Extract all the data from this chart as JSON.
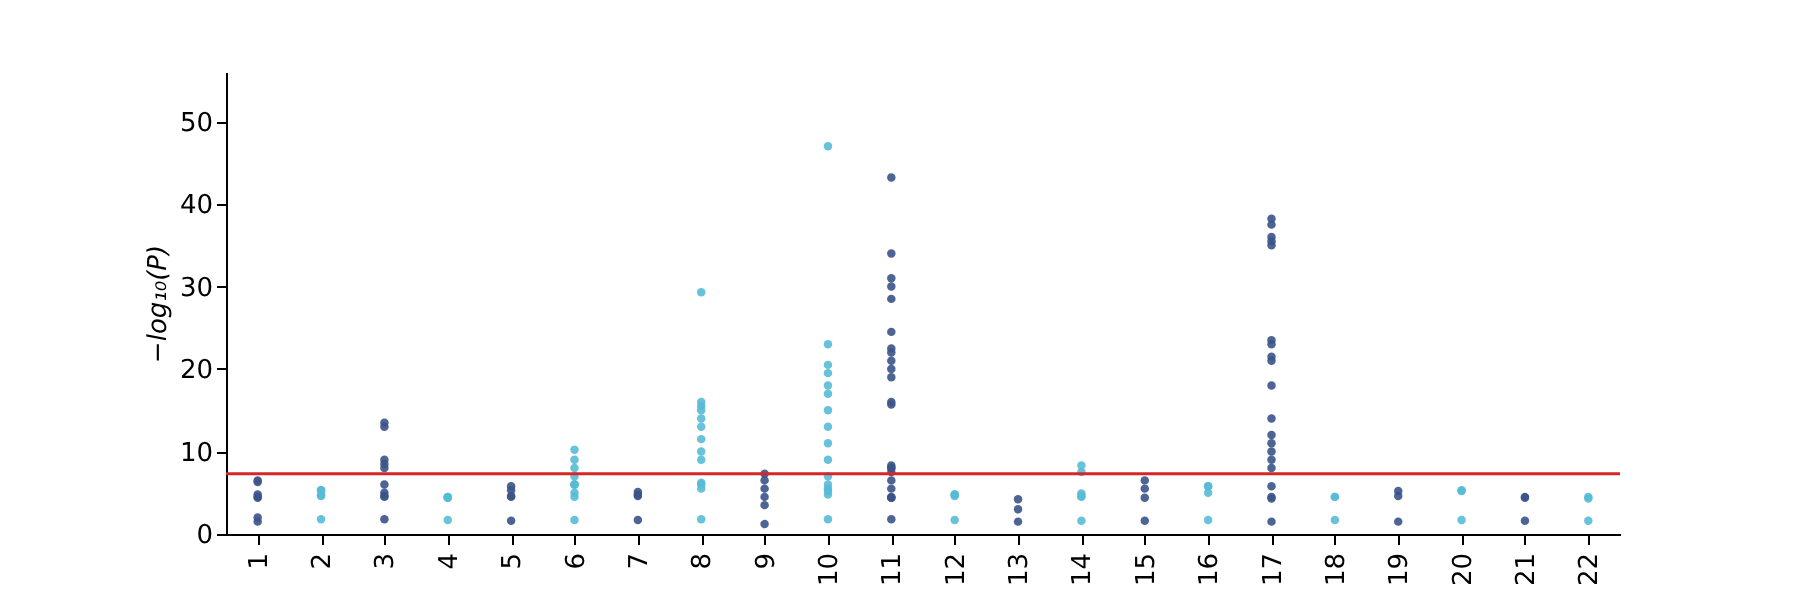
{
  "chart_data": {
    "type": "scatter",
    "ylabel": "−log₁₀(P)",
    "categories": [
      "1",
      "2",
      "3",
      "4",
      "5",
      "6",
      "7",
      "8",
      "9",
      "10",
      "11",
      "12",
      "13",
      "14",
      "15",
      "16",
      "17",
      "18",
      "19",
      "20",
      "21",
      "22"
    ],
    "ylim": [
      0,
      56
    ],
    "yticks": [
      0,
      10,
      20,
      30,
      40,
      50
    ],
    "grid": false,
    "marker": "circle",
    "ref_lines": [
      {
        "axis": "y",
        "value": 7.3,
        "color": "#d62728"
      }
    ],
    "series": [
      {
        "color": "#3b5388",
        "x": [
          "1",
          "1",
          "1",
          "1",
          "1",
          "1",
          "1",
          "3",
          "3",
          "3",
          "3",
          "3",
          "3",
          "3",
          "3",
          "3",
          "3",
          "5",
          "5",
          "5",
          "5",
          "5",
          "7",
          "7",
          "7",
          "7",
          "9",
          "9",
          "9",
          "9",
          "9",
          "9",
          "11",
          "11",
          "11",
          "11",
          "11",
          "11",
          "11",
          "11",
          "11",
          "11",
          "11",
          "11",
          "11",
          "11",
          "11",
          "11",
          "11",
          "11",
          "11",
          "11",
          "11",
          "11",
          "11",
          "13",
          "13",
          "13",
          "15",
          "15",
          "15",
          "15",
          "17",
          "17",
          "17",
          "17",
          "17",
          "17",
          "17",
          "17",
          "17",
          "17",
          "17",
          "17",
          "17",
          "17",
          "17",
          "17",
          "17",
          "17",
          "17",
          "17",
          "19",
          "19",
          "19",
          "21",
          "21",
          "21"
        ],
        "values": [
          6.3,
          4.8,
          2.0,
          4.5,
          1.5,
          6.5,
          4.4,
          4.6,
          4.5,
          1.8,
          5.0,
          13.5,
          13,
          9,
          8.5,
          8,
          6,
          5.8,
          4.6,
          1.6,
          4.5,
          5.3,
          4.6,
          5.1,
          1.7,
          4.8,
          5.5,
          3.5,
          1.2,
          4.5,
          7.3,
          6.5,
          4.4,
          6.5,
          5.5,
          43.2,
          34,
          31,
          30,
          28.5,
          24.5,
          22.5,
          22,
          21,
          20,
          19,
          16,
          15.7,
          8.3,
          8,
          7.5,
          1.8,
          4.4,
          4.5,
          8,
          4.2,
          1.5,
          3.0,
          4.4,
          1.6,
          6.5,
          5.5,
          5.8,
          38.2,
          37.5,
          36,
          35.5,
          35,
          23.5,
          23,
          21.5,
          21,
          18,
          14,
          12,
          11,
          10,
          9,
          8,
          1.5,
          4.5,
          4.3,
          5.2,
          1.5,
          4.6,
          4.5,
          1.6,
          4.4
        ]
      },
      {
        "color": "#56bbd6",
        "x": [
          "2",
          "2",
          "2",
          "2",
          "2",
          "4",
          "4",
          "4",
          "4",
          "4",
          "6",
          "6",
          "6",
          "6",
          "6",
          "6",
          "6",
          "6",
          "6",
          "6",
          "8",
          "8",
          "8",
          "8",
          "8",
          "8",
          "8",
          "8",
          "8",
          "8",
          "8",
          "8",
          "8",
          "10",
          "10",
          "10",
          "10",
          "10",
          "10",
          "10",
          "10",
          "10",
          "10",
          "10",
          "10",
          "10",
          "10",
          "10",
          "10",
          "12",
          "12",
          "12",
          "12",
          "14",
          "14",
          "14",
          "14",
          "14",
          "14",
          "16",
          "16",
          "16",
          "16",
          "18",
          "18",
          "18",
          "20",
          "20",
          "20",
          "22",
          "22",
          "22"
        ],
        "values": [
          5.3,
          4.7,
          1.8,
          4.6,
          5.3,
          4.5,
          4.4,
          1.7,
          4.4,
          4.5,
          5.0,
          10.2,
          9,
          8,
          7,
          6,
          4.5,
          1.7,
          6.0,
          6.0,
          5.5,
          29.3,
          16,
          15.5,
          15,
          14,
          13,
          11.5,
          10,
          9,
          1.8,
          6.2,
          6.0,
          5.2,
          5.5,
          47,
          23,
          20.5,
          19.5,
          18,
          17,
          15,
          13,
          11,
          9,
          7,
          6,
          1.8,
          4.8,
          4.6,
          4.8,
          1.7,
          4.8,
          4.9,
          8.3,
          7.5,
          1.6,
          4.5,
          4.6,
          5.0,
          1.7,
          5.8,
          5.8,
          4.5,
          1.7,
          4.5,
          5.2,
          1.7,
          5.3,
          4.5,
          1.6,
          4.3
        ]
      }
    ]
  }
}
